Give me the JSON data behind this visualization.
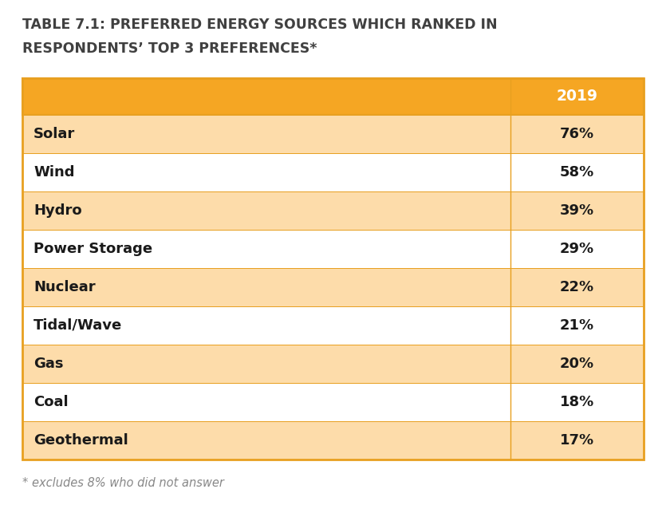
{
  "title_line1": "TABLE 7.1: PREFERRED ENERGY SOURCES WHICH RANKED IN",
  "title_line2": "RESPONDENTS’ TOP 3 PREFERENCES*",
  "header_label": "2019",
  "rows": [
    [
      "Solar",
      "76%"
    ],
    [
      "Wind",
      "58%"
    ],
    [
      "Hydro",
      "39%"
    ],
    [
      "Power Storage",
      "29%"
    ],
    [
      "Nuclear",
      "22%"
    ],
    [
      "Tidal/Wave",
      "21%"
    ],
    [
      "Gas",
      "20%"
    ],
    [
      "Coal",
      "18%"
    ],
    [
      "Geothermal",
      "17%"
    ]
  ],
  "footnote": "* excludes 8% who did not answer",
  "header_bg": "#F5A623",
  "odd_row_bg": "#FDDCAA",
  "even_row_bg": "#FFFFFF",
  "header_text_color": "#FFFFFF",
  "row_text_color": "#1A1A1A",
  "title_color": "#404040",
  "border_color": "#E8A020",
  "footnote_color": "#888888",
  "fig_bg": "#FFFFFF",
  "title_fontsize": 12.5,
  "header_fontsize": 13.5,
  "row_fontsize": 13.0,
  "footnote_fontsize": 10.5,
  "col_split": 0.785
}
